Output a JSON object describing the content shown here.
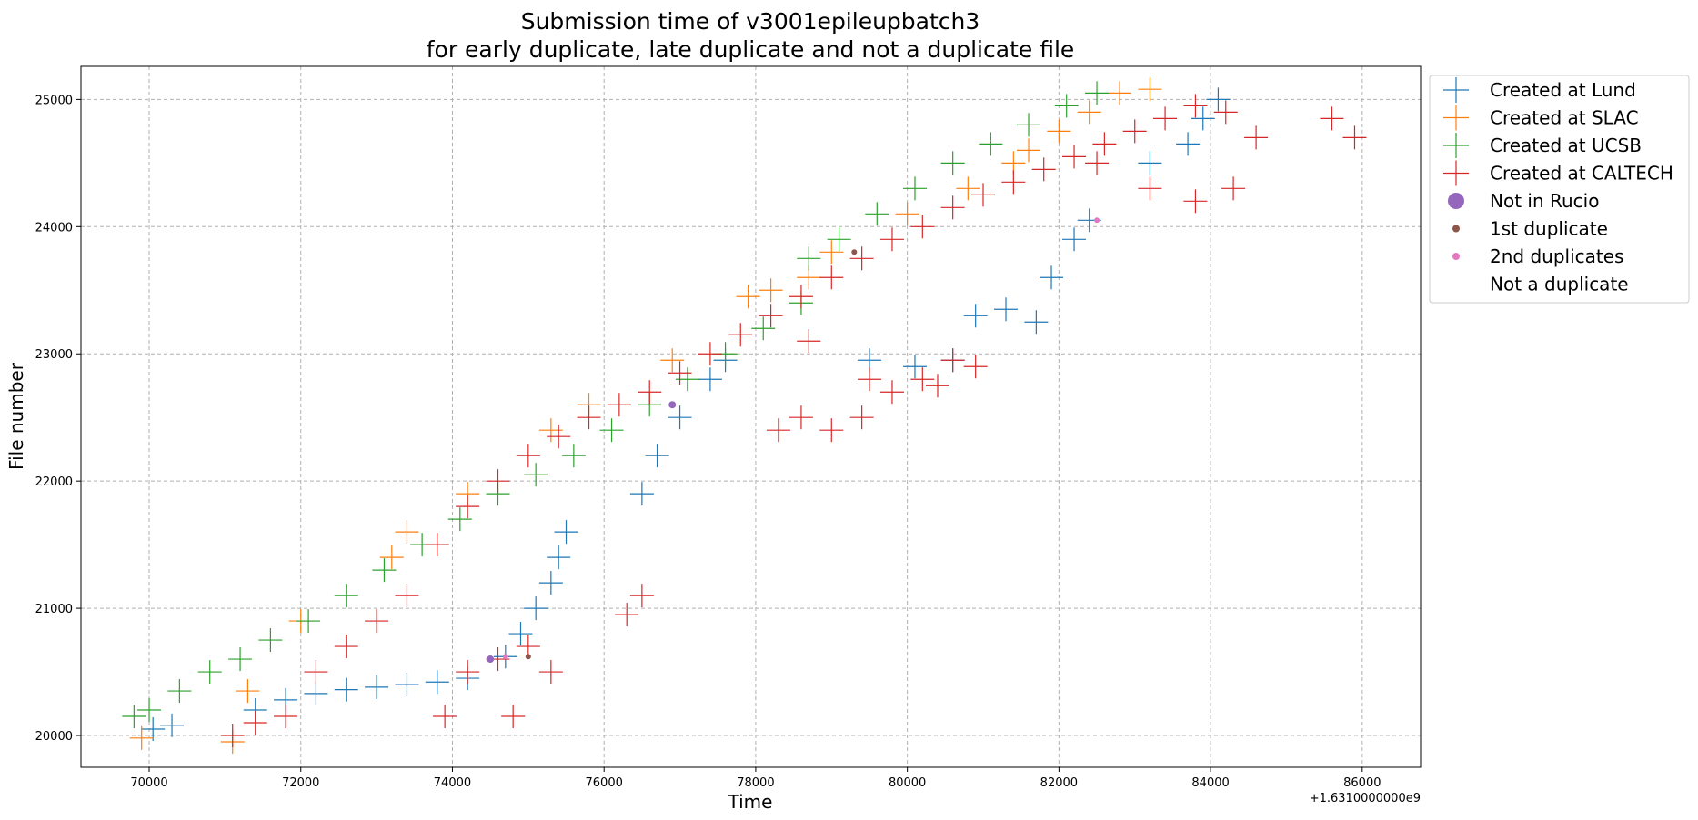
{
  "chart_data": {
    "type": "scatter",
    "title_line1": "Submission time of v3001epileupbatch3",
    "title_line2": "for early duplicate, late duplicate and not a duplicate file",
    "xlabel": "Time",
    "ylabel": "File number",
    "x_offset_label": "+1.6310000000e9",
    "xlim": [
      69100,
      86770
    ],
    "ylim": [
      19750,
      25260
    ],
    "xticks": [
      70000,
      72000,
      74000,
      76000,
      78000,
      80000,
      82000,
      84000,
      86000
    ],
    "yticks": [
      20000,
      21000,
      22000,
      23000,
      24000,
      25000
    ],
    "grid": true,
    "legend_placement": "outside-top-right",
    "legend": [
      {
        "label": "Created at Lund",
        "marker": "plus",
        "color": "#1f77b4"
      },
      {
        "label": "Created at SLAC",
        "marker": "plus",
        "color": "#ff7f0e"
      },
      {
        "label": "Created at UCSB",
        "marker": "plus",
        "color": "#2ca02c"
      },
      {
        "label": "Created at CALTECH",
        "marker": "plus",
        "color": "#d62728"
      },
      {
        "label": "Not in Rucio",
        "marker": "circle-large",
        "color": "#9467bd"
      },
      {
        "label": "1st duplicate",
        "marker": "circle",
        "color": "#8c564b"
      },
      {
        "label": "2nd duplicates",
        "marker": "circle",
        "color": "#e377c2"
      },
      {
        "label": "Not a duplicate",
        "marker": "none",
        "color": "#ffffff"
      }
    ],
    "series": [
      {
        "name": "Created at Lund",
        "color": "#1f77b4",
        "points": [
          [
            70050,
            20050
          ],
          [
            70300,
            20080
          ],
          [
            71400,
            20200
          ],
          [
            71800,
            20280
          ],
          [
            72200,
            20330
          ],
          [
            72600,
            20360
          ],
          [
            73000,
            20380
          ],
          [
            73400,
            20400
          ],
          [
            73800,
            20420
          ],
          [
            74200,
            20450
          ],
          [
            74700,
            20620
          ],
          [
            74900,
            20800
          ],
          [
            75100,
            21000
          ],
          [
            75300,
            21200
          ],
          [
            75400,
            21400
          ],
          [
            75500,
            21600
          ],
          [
            76500,
            21900
          ],
          [
            76700,
            22200
          ],
          [
            77000,
            22500
          ],
          [
            77400,
            22800
          ],
          [
            77600,
            22950
          ],
          [
            79500,
            22950
          ],
          [
            80100,
            22900
          ],
          [
            80600,
            22950
          ],
          [
            80900,
            23300
          ],
          [
            81300,
            23350
          ],
          [
            81700,
            23250
          ],
          [
            81900,
            23600
          ],
          [
            82200,
            23900
          ],
          [
            82400,
            24050
          ],
          [
            83200,
            24500
          ],
          [
            83700,
            24650
          ],
          [
            83900,
            24850
          ],
          [
            84100,
            25000
          ]
        ]
      },
      {
        "name": "Created at SLAC",
        "color": "#ff7f0e",
        "points": [
          [
            69900,
            19980
          ],
          [
            71100,
            19950
          ],
          [
            71300,
            20350
          ],
          [
            72000,
            20900
          ],
          [
            73200,
            21400
          ],
          [
            73400,
            21600
          ],
          [
            74200,
            21900
          ],
          [
            75300,
            22400
          ],
          [
            75800,
            22600
          ],
          [
            76900,
            22950
          ],
          [
            77900,
            23450
          ],
          [
            78200,
            23500
          ],
          [
            78700,
            23600
          ],
          [
            79000,
            23800
          ],
          [
            80000,
            24100
          ],
          [
            80800,
            24300
          ],
          [
            81400,
            24500
          ],
          [
            81600,
            24600
          ],
          [
            82000,
            24750
          ],
          [
            82400,
            24900
          ],
          [
            82800,
            25050
          ],
          [
            83200,
            25080
          ]
        ]
      },
      {
        "name": "Created at UCSB",
        "color": "#2ca02c",
        "points": [
          [
            69800,
            20150
          ],
          [
            70000,
            20200
          ],
          [
            70400,
            20350
          ],
          [
            70800,
            20500
          ],
          [
            71200,
            20600
          ],
          [
            71600,
            20750
          ],
          [
            72100,
            20900
          ],
          [
            72600,
            21100
          ],
          [
            73100,
            21300
          ],
          [
            73600,
            21500
          ],
          [
            74100,
            21700
          ],
          [
            74600,
            21900
          ],
          [
            75100,
            22050
          ],
          [
            75600,
            22200
          ],
          [
            76100,
            22400
          ],
          [
            76600,
            22600
          ],
          [
            77100,
            22800
          ],
          [
            77600,
            23000
          ],
          [
            78100,
            23200
          ],
          [
            78600,
            23400
          ],
          [
            78700,
            23750
          ],
          [
            79100,
            23900
          ],
          [
            79600,
            24100
          ],
          [
            80100,
            24300
          ],
          [
            80600,
            24500
          ],
          [
            81100,
            24650
          ],
          [
            81600,
            24800
          ],
          [
            82100,
            24950
          ],
          [
            82500,
            25050
          ]
        ]
      },
      {
        "name": "Created at CALTECH",
        "color": "#d62728",
        "points": [
          [
            71100,
            20000
          ],
          [
            71400,
            20100
          ],
          [
            71800,
            20150
          ],
          [
            72200,
            20500
          ],
          [
            72600,
            20700
          ],
          [
            73000,
            20900
          ],
          [
            73400,
            21100
          ],
          [
            73800,
            21500
          ],
          [
            74200,
            21800
          ],
          [
            74600,
            22000
          ],
          [
            75000,
            22200
          ],
          [
            75400,
            22350
          ],
          [
            75800,
            22500
          ],
          [
            76200,
            22600
          ],
          [
            76600,
            22700
          ],
          [
            77000,
            22850
          ],
          [
            77400,
            23000
          ],
          [
            77800,
            23150
          ],
          [
            78200,
            23300
          ],
          [
            78600,
            23450
          ],
          [
            79000,
            23600
          ],
          [
            79400,
            23750
          ],
          [
            79800,
            23900
          ],
          [
            80200,
            24000
          ],
          [
            80600,
            24150
          ],
          [
            81000,
            24250
          ],
          [
            81400,
            24350
          ],
          [
            81800,
            24450
          ],
          [
            82200,
            24550
          ],
          [
            82600,
            24650
          ],
          [
            83000,
            24750
          ],
          [
            83400,
            24850
          ],
          [
            83800,
            24950
          ],
          [
            84200,
            24900
          ],
          [
            84600,
            24700
          ],
          [
            84300,
            24300
          ],
          [
            83800,
            24200
          ],
          [
            83200,
            24300
          ],
          [
            82500,
            24500
          ],
          [
            78600,
            22500
          ],
          [
            79000,
            22400
          ],
          [
            79400,
            22500
          ],
          [
            79800,
            22700
          ],
          [
            80200,
            22800
          ],
          [
            80600,
            22950
          ],
          [
            80900,
            22900
          ],
          [
            79500,
            22800
          ],
          [
            78700,
            23100
          ],
          [
            74200,
            20500
          ],
          [
            74600,
            20600
          ],
          [
            75000,
            20700
          ],
          [
            75300,
            20500
          ],
          [
            73900,
            20150
          ],
          [
            74800,
            20150
          ],
          [
            76500,
            21100
          ],
          [
            76300,
            20950
          ],
          [
            78300,
            22400
          ],
          [
            80400,
            22750
          ],
          [
            85600,
            24850
          ],
          [
            85900,
            24700
          ]
        ]
      },
      {
        "name": "Not in Rucio",
        "color": "#9467bd",
        "points": [
          [
            74500,
            20600
          ],
          [
            76900,
            22600
          ]
        ]
      },
      {
        "name": "1st duplicate",
        "color": "#8c564b",
        "points": [
          [
            75000,
            20620
          ],
          [
            79300,
            23800
          ]
        ]
      },
      {
        "name": "2nd duplicates",
        "color": "#e377c2",
        "points": [
          [
            74700,
            20620
          ],
          [
            82500,
            24050
          ]
        ]
      }
    ]
  }
}
